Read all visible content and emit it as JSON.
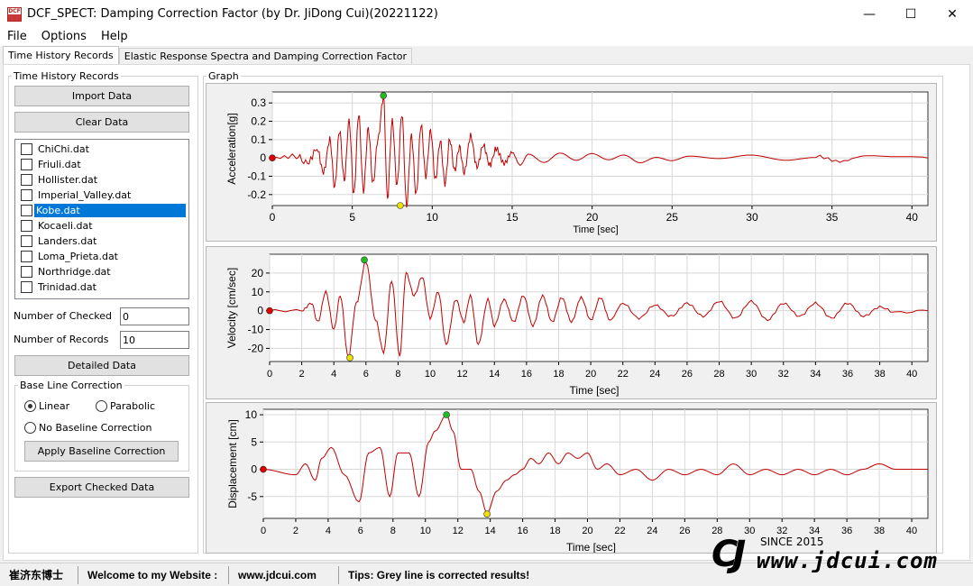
{
  "window": {
    "title": "DCF_SPECT: Damping Correction Factor (by Dr. JiDong Cui)(20221122)",
    "icon_text": "DCF",
    "min": "—",
    "max": "☐",
    "close": "✕"
  },
  "menu": [
    "File",
    "Options",
    "Help"
  ],
  "tabs": [
    "Time History Records",
    "Elastic Response Spectra and Damping Correction Factor"
  ],
  "left": {
    "group_title": "Time History Records",
    "import_btn": "Import Data",
    "clear_btn": "Clear Data",
    "files": [
      "ChiChi.dat",
      "Friuli.dat",
      "Hollister.dat",
      "Imperial_Valley.dat",
      "Kobe.dat",
      "Kocaeli.dat",
      "Landers.dat",
      "Loma_Prieta.dat",
      "Northridge.dat",
      "Trinidad.dat"
    ],
    "selected_index": 4,
    "num_checked_label": "Number of Checked",
    "num_checked": "0",
    "num_records_label": "Number of Records",
    "num_records": "10",
    "detailed_btn": "Detailed Data",
    "baseline_title": "Base Line Correction",
    "linear": "Linear",
    "parabolic": "Parabolic",
    "none": "No Baseline Correction",
    "apply_btn": "Apply Baseline Correction",
    "export_btn": "Export Checked Data"
  },
  "graph_title": "Graph",
  "chart_data": [
    {
      "type": "line",
      "ylabel": "Acceleration[g]",
      "xlabel": "Time [sec]",
      "xlim": [
        0,
        41
      ],
      "ylim": [
        -0.26,
        0.36
      ],
      "xticks": [
        0,
        5,
        10,
        15,
        20,
        25,
        30,
        35,
        40
      ],
      "yticks": [
        0.3,
        0.2,
        0.1,
        0,
        -0.1,
        -0.2
      ],
      "ytick_labels": [
        "0.3",
        "0.2",
        "0.1",
        "0",
        "-0.1",
        "-0.2"
      ],
      "series": [
        {
          "color": "#c00000",
          "x": [
            0,
            1.5,
            2.2,
            2.8,
            3.2,
            3.6,
            3.9,
            4.2,
            4.5,
            4.8,
            5.1,
            5.4,
            5.7,
            6.0,
            6.3,
            6.6,
            6.95,
            7.2,
            7.5,
            7.8,
            8.1,
            8.4,
            8.7,
            9.0,
            9.3,
            9.6,
            9.9,
            10.2,
            10.5,
            10.8,
            11.1,
            11.4,
            11.7,
            12.0,
            12.4,
            12.8,
            13.2,
            13.6,
            14.0,
            14.5,
            15.0,
            15.5,
            16.0,
            17.0,
            18.0,
            19.0,
            20.0,
            21.0,
            22.0,
            23.0,
            24.0,
            25.0,
            26.0,
            28.0,
            30.0,
            32.0,
            34.0,
            35.5,
            37.0,
            39.0,
            41.0
          ],
          "y": [
            0,
            0.01,
            -0.03,
            0.05,
            -0.08,
            0.1,
            -0.16,
            0.15,
            -0.12,
            0.2,
            -0.2,
            0.24,
            -0.18,
            0.16,
            -0.14,
            0.1,
            0.33,
            -0.22,
            0.2,
            -0.15,
            0.24,
            -0.26,
            0.12,
            -0.2,
            0.18,
            -0.1,
            0.15,
            -0.12,
            0.09,
            -0.14,
            0.1,
            -0.07,
            0.06,
            -0.08,
            0.12,
            -0.05,
            0.07,
            -0.04,
            0.05,
            -0.03,
            0.03,
            -0.04,
            0.02,
            -0.03,
            0.02,
            -0.02,
            0.02,
            -0.01,
            0.02,
            -0.02,
            0.01,
            -0.01,
            0.01,
            -0.01,
            0.01,
            -0.01,
            0.01,
            -0.02,
            0.01,
            0,
            0
          ]
        }
      ],
      "markers": [
        {
          "x": 0,
          "y": 0,
          "color": "#e00000"
        },
        {
          "x": 6.95,
          "y": 0.34,
          "color": "#22bb22"
        },
        {
          "x": 8.0,
          "y": -0.26,
          "color": "#f0e000"
        }
      ]
    },
    {
      "type": "line",
      "ylabel": "Velocity [cm/sec]",
      "xlabel": "Time [sec]",
      "xlim": [
        0,
        41
      ],
      "ylim": [
        -27,
        30
      ],
      "xticks": [
        0,
        2,
        4,
        6,
        8,
        10,
        12,
        14,
        16,
        18,
        20,
        22,
        24,
        26,
        28,
        30,
        32,
        34,
        36,
        38,
        40
      ],
      "yticks": [
        20,
        10,
        0,
        -10,
        -20
      ],
      "ytick_labels": [
        "20",
        "10",
        "0",
        "-10",
        "-20"
      ],
      "series": [
        {
          "color": "#c00000",
          "x": [
            0,
            2.0,
            2.6,
            3.0,
            3.5,
            4.0,
            4.4,
            4.9,
            5.4,
            6.0,
            6.6,
            7.1,
            7.6,
            8.1,
            8.5,
            9.0,
            9.5,
            10.0,
            10.5,
            11.0,
            11.6,
            12.1,
            12.5,
            13.0,
            13.6,
            14.0,
            14.6,
            15.2,
            15.8,
            16.4,
            17.0,
            17.6,
            18.2,
            18.8,
            19.4,
            20.0,
            20.6,
            21.2,
            22.0,
            23.0,
            24.0,
            25.0,
            26.0,
            27.0,
            28.0,
            29.0,
            30.0,
            31.0,
            32.0,
            33.0,
            34.0,
            35.0,
            36.0,
            37.0,
            38.0,
            39.0,
            41.0
          ],
          "y": [
            0,
            0,
            4,
            -6,
            10,
            -10,
            8,
            -25,
            4,
            26,
            -5,
            -22,
            16,
            -24,
            20,
            8,
            18,
            -4,
            10,
            -18,
            6,
            -6,
            8,
            -18,
            6,
            -8,
            6,
            -6,
            8,
            -8,
            8,
            -6,
            7,
            -6,
            7,
            -5,
            7,
            -5,
            4,
            -4,
            3,
            -3,
            4,
            -3,
            5,
            -4,
            5,
            -5,
            4,
            -3,
            4,
            -4,
            4,
            -3,
            2,
            -1,
            0
          ]
        }
      ],
      "markers": [
        {
          "x": 0,
          "y": 0,
          "color": "#e00000"
        },
        {
          "x": 5.9,
          "y": 27,
          "color": "#22bb22"
        },
        {
          "x": 5.0,
          "y": -25,
          "color": "#f0e000"
        }
      ]
    },
    {
      "type": "line",
      "ylabel": "Displacement [cm]",
      "xlabel": "Time [sec]",
      "xlim": [
        0,
        41
      ],
      "ylim": [
        -9,
        11
      ],
      "xticks": [
        0,
        2,
        4,
        6,
        8,
        10,
        12,
        14,
        16,
        18,
        20,
        22,
        24,
        26,
        28,
        30,
        32,
        34,
        36,
        38,
        40
      ],
      "yticks": [
        10,
        5,
        0,
        -5
      ],
      "ytick_labels": [
        "10",
        "5",
        "0",
        "-5"
      ],
      "series": [
        {
          "color": "#c00000",
          "x": [
            0,
            2.0,
            2.6,
            3.2,
            3.6,
            4.2,
            5.0,
            5.9,
            6.5,
            7.2,
            7.8,
            8.3,
            9.0,
            9.6,
            10.2,
            10.6,
            11.3,
            11.7,
            12.2,
            12.8,
            13.3,
            13.8,
            14.4,
            15.0,
            15.5,
            16.0,
            16.5,
            17.0,
            17.6,
            18.2,
            18.8,
            19.4,
            20.0,
            20.6,
            21.2,
            22.0,
            23.0,
            24.0,
            25.0,
            26.0,
            27.0,
            28.0,
            29.0,
            30.0,
            31.0,
            32.0,
            33.0,
            34.0,
            35.0,
            36.0,
            37.0,
            38.0,
            39.0,
            41.0
          ],
          "y": [
            0,
            -1,
            1,
            -2,
            2,
            4,
            -1,
            -6,
            3,
            4,
            -5,
            3,
            3,
            -5,
            5,
            7,
            10,
            7,
            0,
            0,
            -4,
            -8,
            -4,
            -2,
            -1,
            0,
            2,
            1,
            3,
            1,
            3,
            2,
            3,
            0,
            1,
            -1,
            0,
            -2,
            0,
            -1,
            0,
            -1,
            1,
            -1,
            0,
            -1,
            0,
            -1,
            0,
            -1,
            0,
            1,
            0,
            0
          ]
        }
      ],
      "markers": [
        {
          "x": 0,
          "y": 0,
          "color": "#e00000"
        },
        {
          "x": 11.3,
          "y": 10,
          "color": "#22bb22"
        },
        {
          "x": 13.8,
          "y": -8.2,
          "color": "#f0e000"
        }
      ]
    }
  ],
  "status": {
    "name": "崔济东博士",
    "welcome": "Welcome to my Website :",
    "url": "www.jdcui.com",
    "tips": "Tips: Grey line is corrected results!"
  },
  "logo": {
    "mark": "CJ",
    "since": "SINCE 2015",
    "site": "www.jdcui.com"
  }
}
